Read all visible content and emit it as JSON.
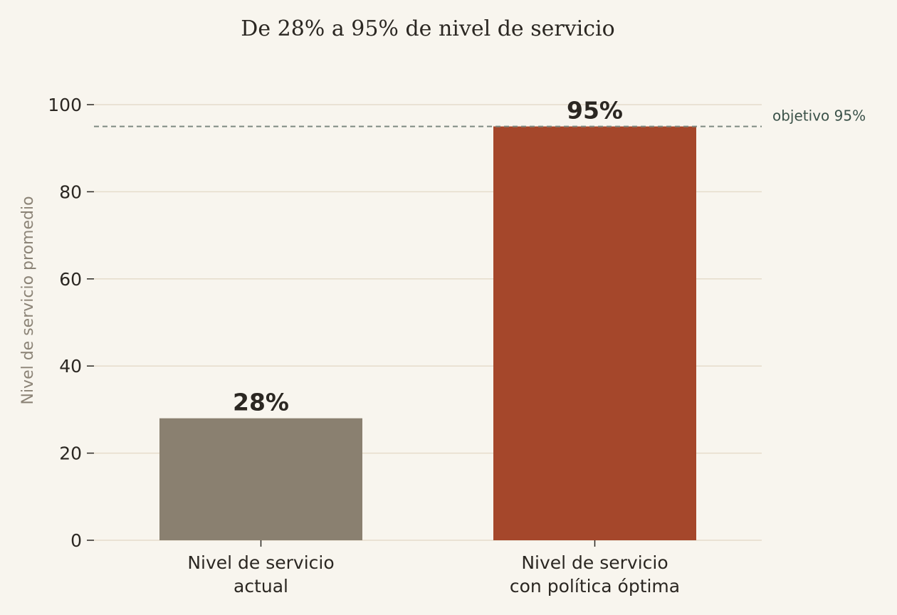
{
  "chart_data": {
    "type": "bar",
    "title": "De 28% a 95% de nivel de servicio",
    "ylabel": "Nivel de servicio promedio",
    "xlabel": "",
    "categories": [
      [
        "Nivel de servicio",
        "actual"
      ],
      [
        "Nivel de servicio",
        "con política óptima"
      ]
    ],
    "values": [
      28,
      95
    ],
    "data_labels": [
      "28%",
      "95%"
    ],
    "bar_colors": [
      "#8a8070",
      "#a5472b"
    ],
    "ylim": [
      0,
      100
    ],
    "yticks": [
      0,
      20,
      40,
      60,
      80,
      100
    ],
    "grid": "horizontal",
    "reference_line": {
      "value": 95,
      "label": "objetivo 95%",
      "style": "dashed",
      "color": "#7f8a82"
    },
    "colors": {
      "background": "#f8f5ee",
      "grid": "#e6dccb",
      "text": "#2b2722",
      "axis_label": "#8c8477"
    }
  }
}
